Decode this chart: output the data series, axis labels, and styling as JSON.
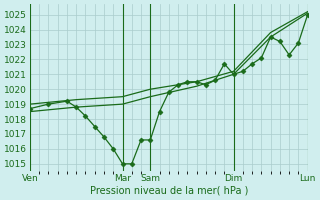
{
  "bg_color": "#d0eeee",
  "grid_color": "#aacccc",
  "line_color": "#1a6b1a",
  "marker_color": "#1a6b1a",
  "ylabel": "Pression niveau de la mer( hPa )",
  "ylim": [
    1014.5,
    1025.7
  ],
  "yticks": [
    1015,
    1016,
    1017,
    1018,
    1019,
    1020,
    1021,
    1022,
    1023,
    1024,
    1025
  ],
  "xtick_labels": [
    "Ven",
    "Mar",
    "Sam",
    "Dim",
    "Lun"
  ],
  "xtick_positions": [
    0,
    10,
    13,
    22,
    30
  ],
  "vline_positions": [
    0,
    10,
    13,
    22,
    30
  ],
  "series1": {
    "x": [
      0,
      2,
      4,
      5,
      6,
      7,
      8,
      9,
      10,
      11,
      12,
      13,
      14,
      15,
      16,
      17,
      18,
      19,
      20,
      21,
      22,
      23,
      24,
      25,
      26,
      27,
      28,
      29,
      30
    ],
    "y": [
      1018.7,
      1019.0,
      1019.2,
      1018.8,
      1018.2,
      1017.5,
      1016.8,
      1016.0,
      1015.0,
      1015.0,
      1016.6,
      1016.6,
      1018.5,
      1019.8,
      1020.3,
      1020.5,
      1020.5,
      1020.3,
      1020.6,
      1021.7,
      1021.0,
      1021.2,
      1021.7,
      1022.1,
      1023.5,
      1023.2,
      1022.3,
      1023.1,
      1025.0
    ]
  },
  "series2": {
    "x": [
      0,
      5,
      10,
      13,
      18,
      22,
      26,
      30
    ],
    "y": [
      1019.0,
      1019.3,
      1019.5,
      1020.0,
      1020.5,
      1021.2,
      1023.8,
      1025.2
    ]
  },
  "series3": {
    "x": [
      0,
      5,
      10,
      13,
      18,
      22,
      26,
      30
    ],
    "y": [
      1018.5,
      1018.8,
      1019.0,
      1019.5,
      1020.2,
      1021.0,
      1023.5,
      1025.1
    ]
  }
}
